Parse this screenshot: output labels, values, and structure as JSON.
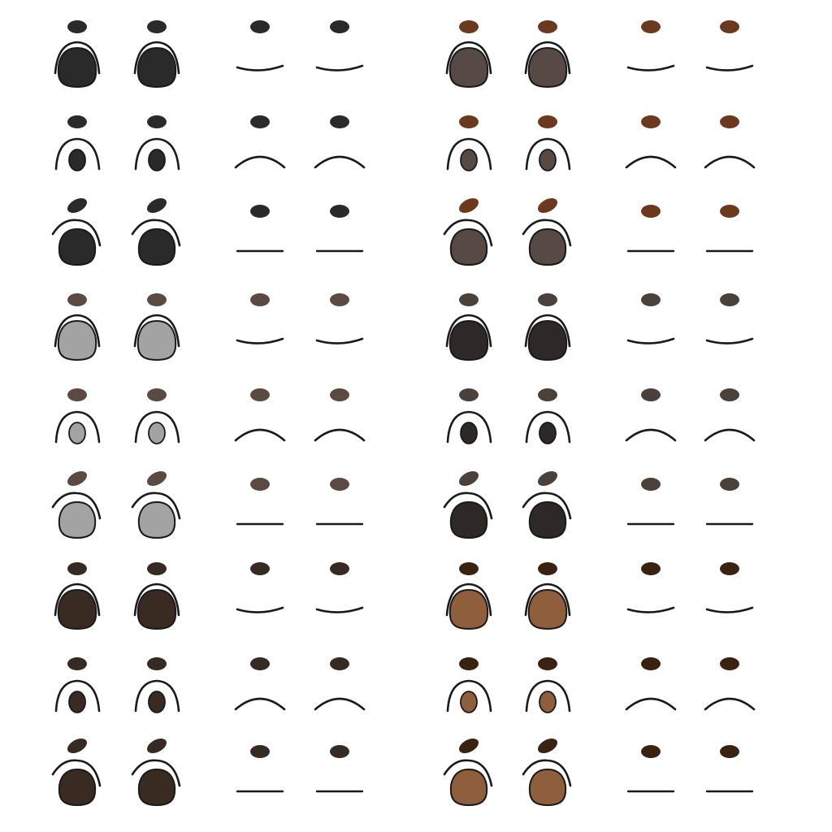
{
  "sprite_sheet": {
    "groups": [
      {
        "name": "left",
        "rows": [
          {
            "brow": "#2a2a2a",
            "eye": "#2a2a2a",
            "kind": "open"
          },
          {
            "brow": "#2a2a2a",
            "eye": "#2a2a2a",
            "kind": "small"
          },
          {
            "brow": "#2a2a2a",
            "eye": "#2a2a2a",
            "kind": "angry"
          },
          {
            "brow": "#5a4a42",
            "eye": "#a3a3a3",
            "kind": "open"
          },
          {
            "brow": "#5a4a42",
            "eye": "#a3a3a3",
            "kind": "small"
          },
          {
            "brow": "#5a4a42",
            "eye": "#a3a3a3",
            "kind": "angry"
          },
          {
            "brow": "#352a24",
            "eye": "#3a2b22",
            "kind": "open"
          },
          {
            "brow": "#352a24",
            "eye": "#3a2b22",
            "kind": "small"
          },
          {
            "brow": "#352a24",
            "eye": "#3a2b22",
            "kind": "angry"
          }
        ]
      },
      {
        "name": "right",
        "rows": [
          {
            "brow": "#6b3a1e",
            "eye": "#574a45",
            "kind": "open"
          },
          {
            "brow": "#6b3a1e",
            "eye": "#574a45",
            "kind": "small"
          },
          {
            "brow": "#6b3a1e",
            "eye": "#574a45",
            "kind": "angry"
          },
          {
            "brow": "#4a403c",
            "eye": "#2e2826",
            "kind": "open"
          },
          {
            "brow": "#4a403c",
            "eye": "#2e2826",
            "kind": "small"
          },
          {
            "brow": "#4a403c",
            "eye": "#2e2826",
            "kind": "angry"
          },
          {
            "brow": "#3a2212",
            "eye": "#8f5e3c",
            "kind": "open"
          },
          {
            "brow": "#3a2212",
            "eye": "#8f5e3c",
            "kind": "small"
          },
          {
            "brow": "#3a2212",
            "eye": "#8f5e3c",
            "kind": "angry"
          }
        ]
      }
    ],
    "closed_styles": [
      "smile-curve",
      "frown-arc",
      "flat-line"
    ],
    "line_color": "#1a1a1a"
  }
}
